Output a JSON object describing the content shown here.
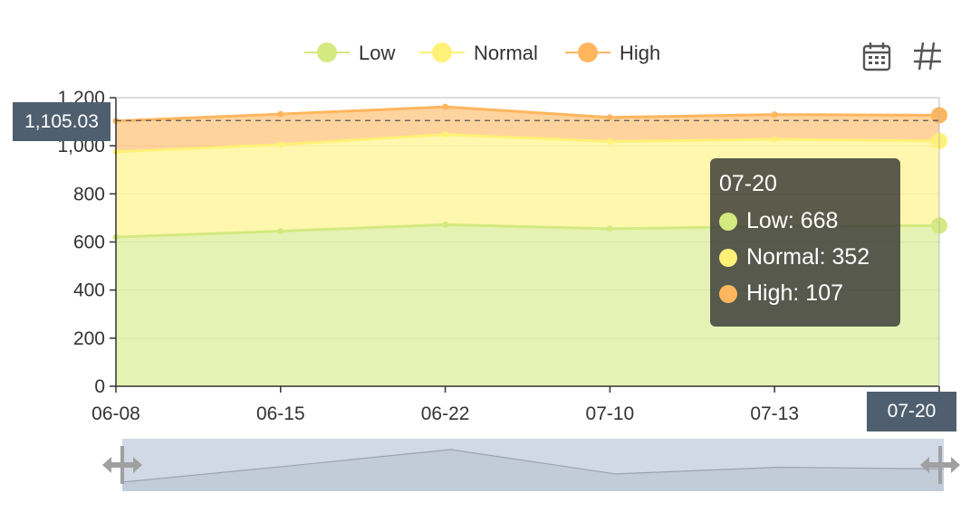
{
  "chart_data": {
    "type": "area",
    "stacked": true,
    "categories": [
      "06-08",
      "06-15",
      "06-22",
      "07-10",
      "07-13",
      "07-20"
    ],
    "series": [
      {
        "name": "Low",
        "color": "#d4e980",
        "values": [
          620,
          645,
          672,
          655,
          665,
          668
        ]
      },
      {
        "name": "Normal",
        "color": "#fff176",
        "values": [
          355,
          360,
          375,
          363,
          362,
          352
        ]
      },
      {
        "name": "High",
        "color": "#ffb65e",
        "values": [
          128,
          127,
          115,
          100,
          103,
          107
        ]
      }
    ],
    "ylim": [
      0,
      1200
    ],
    "yticks": [
      "0",
      "200",
      "400",
      "600",
      "800",
      "1,000",
      "1,200"
    ],
    "grid": true,
    "legend_position": "top-center",
    "pointer_line_value": 1105.03
  },
  "tooltip": {
    "title": "07-20",
    "rows": [
      {
        "text": "Low: 668",
        "color": "#d4e980"
      },
      {
        "text": "Normal: 352",
        "color": "#fff176"
      },
      {
        "text": "High: 107",
        "color": "#ffb65e"
      }
    ]
  },
  "axis_pointer": {
    "y_label": "1,105.03",
    "x_label": "07-20"
  },
  "toolbox": {
    "icons": [
      "calendar-icon",
      "hash-icon"
    ]
  }
}
